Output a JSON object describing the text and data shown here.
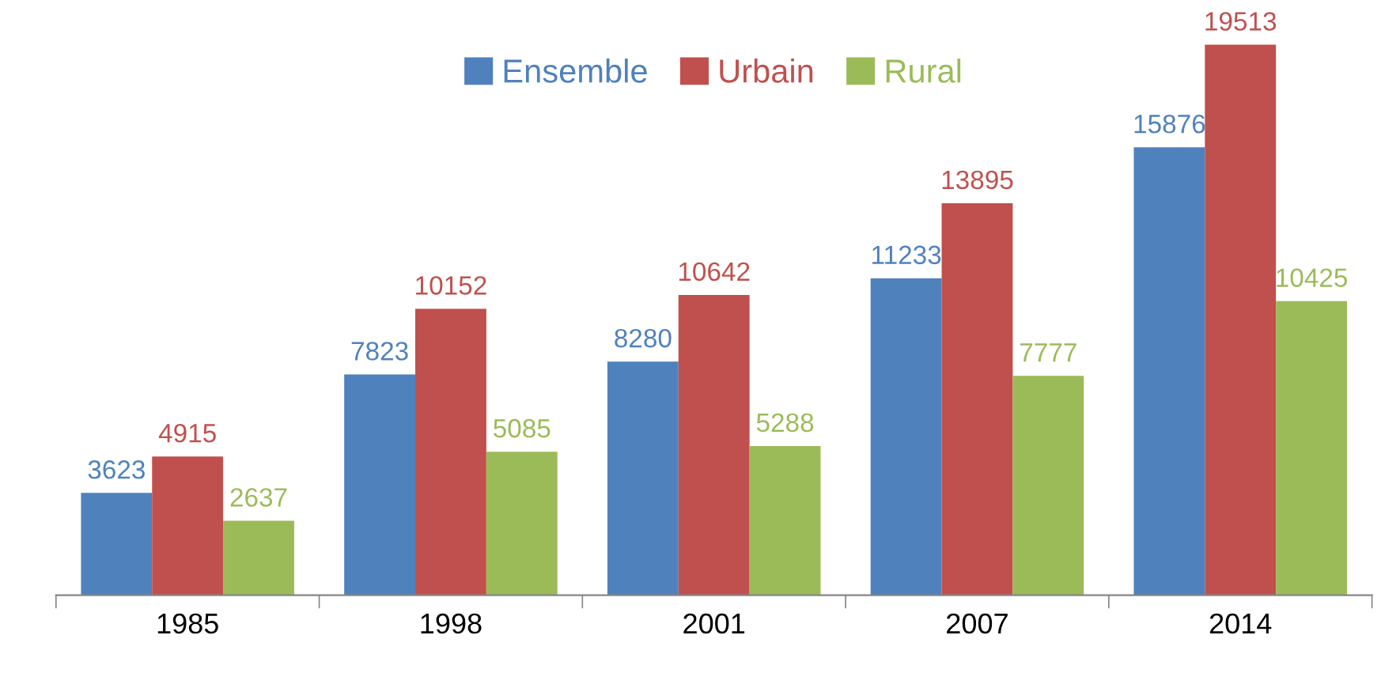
{
  "chart_data": {
    "type": "bar",
    "categories": [
      "1985",
      "1998",
      "2001",
      "2007",
      "2014"
    ],
    "series": [
      {
        "name": "Ensemble",
        "color": "#4f81bd",
        "values": [
          3623,
          7823,
          8280,
          11233,
          15876
        ]
      },
      {
        "name": "Urbain",
        "color": "#c0504d",
        "values": [
          4915,
          10152,
          10642,
          13895,
          19513
        ]
      },
      {
        "name": "Rural",
        "color": "#9bbb59",
        "values": [
          2637,
          5085,
          5288,
          7777,
          10425
        ]
      }
    ],
    "tick_labels": "x",
    "data_labels": true,
    "legend": "top",
    "grid": false
  }
}
